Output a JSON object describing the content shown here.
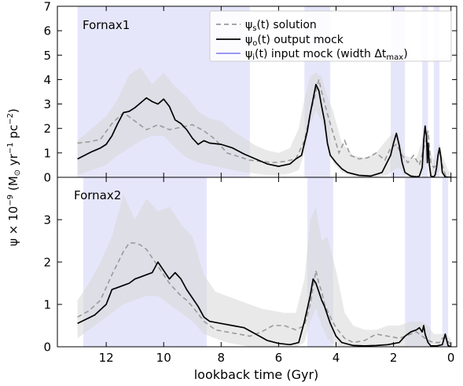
{
  "figure": {
    "ylabel_main": "ψ × 10",
    "ylabel_exp": "−9",
    "ylabel_unit_open": " (M",
    "ylabel_sun": "⊙",
    "ylabel_unit_mid": " yr",
    "ylabel_unit_exp1": "−1",
    "ylabel_unit_pc": " pc",
    "ylabel_unit_exp2": "−2",
    "ylabel_unit_close": ")",
    "xlabel": "lookback time (Gyr)",
    "xlim": [
      13.7,
      -0.2
    ],
    "x_ticks": [
      12,
      10,
      8,
      6,
      4,
      2,
      0
    ],
    "colors": {
      "band": "#e6e6fb",
      "uncertainty": "#d7d7d7",
      "output": "#000000",
      "solution": "#9a9a9a",
      "input_legend": "#8c8cf0"
    }
  },
  "legend": {
    "solution_psi": "ψ",
    "solution_sub": "s",
    "solution_text": "(t) solution",
    "output_psi": "ψ",
    "output_sub": "o",
    "output_text": "(t) output mock",
    "input_psi": "ψ",
    "input_sub": "i",
    "input_text": "(t) input mock (width Δt",
    "input_max": "max",
    "input_close": ")"
  },
  "chart_data": [
    {
      "type": "line",
      "title": "Fornax1",
      "ylim": [
        0,
        7
      ],
      "y_ticks": [
        0,
        1,
        2,
        3,
        4,
        5,
        6,
        7
      ],
      "input_bands": [
        [
          13.0,
          7.0
        ],
        [
          5.1,
          4.2
        ],
        [
          2.1,
          1.6
        ],
        [
          1.0,
          0.8
        ],
        [
          0.6,
          0.4
        ]
      ],
      "series": [
        {
          "name": "output mock",
          "x": [
            13.0,
            12.5,
            12.2,
            12.0,
            11.8,
            11.6,
            11.4,
            11.2,
            11.0,
            10.8,
            10.6,
            10.4,
            10.2,
            10.0,
            9.8,
            9.6,
            9.4,
            9.2,
            9.0,
            8.8,
            8.6,
            8.4,
            8.0,
            7.6,
            7.2,
            6.8,
            6.4,
            6.0,
            5.6,
            5.4,
            5.2,
            5.0,
            4.9,
            4.8,
            4.7,
            4.6,
            4.5,
            4.4,
            4.3,
            4.2,
            4.0,
            3.8,
            3.6,
            3.2,
            2.8,
            2.4,
            2.1,
            2.0,
            1.9,
            1.8,
            1.7,
            1.6,
            1.4,
            1.2,
            1.1,
            1.0,
            0.95,
            0.9,
            0.88,
            0.85,
            0.82,
            0.8,
            0.75,
            0.7,
            0.6,
            0.55,
            0.5,
            0.45,
            0.4,
            0.35,
            0.3,
            0.2,
            0.1,
            0.0
          ],
          "values": [
            0.75,
            1.05,
            1.2,
            1.35,
            1.7,
            2.2,
            2.65,
            2.7,
            2.85,
            3.05,
            3.25,
            3.1,
            3.0,
            3.2,
            2.9,
            2.35,
            2.2,
            1.95,
            1.6,
            1.35,
            1.5,
            1.4,
            1.35,
            1.2,
            0.95,
            0.75,
            0.55,
            0.45,
            0.55,
            0.75,
            0.9,
            1.9,
            2.6,
            3.2,
            3.8,
            3.55,
            2.9,
            2.3,
            1.4,
            0.9,
            0.6,
            0.35,
            0.2,
            0.08,
            0.05,
            0.2,
            0.9,
            1.4,
            1.8,
            1.3,
            0.6,
            0.2,
            0.05,
            0.02,
            0.05,
            0.4,
            1.5,
            2.1,
            1.9,
            1.7,
            0.6,
            1.4,
            0.5,
            0.05,
            0.02,
            0.1,
            0.4,
            0.9,
            1.2,
            0.8,
            0.2,
            0.02,
            0.0,
            0.0
          ]
        },
        {
          "name": "solution",
          "x": [
            13.0,
            12.6,
            12.2,
            11.8,
            11.4,
            11.0,
            10.6,
            10.2,
            9.8,
            9.4,
            9.0,
            8.6,
            8.2,
            7.8,
            7.4,
            7.0,
            6.6,
            6.2,
            5.8,
            5.4,
            5.1,
            4.9,
            4.7,
            4.6,
            4.5,
            4.3,
            4.1,
            3.9,
            3.7,
            3.5,
            3.2,
            2.9,
            2.6,
            2.3,
            2.1,
            1.9,
            1.7,
            1.5,
            1.3,
            1.1,
            0.9,
            0.8,
            0.7,
            0.6,
            0.5,
            0.4,
            0.3,
            0.2,
            0.1,
            0.0
          ],
          "values": [
            1.4,
            1.45,
            1.55,
            2.2,
            2.65,
            2.3,
            1.95,
            2.15,
            1.95,
            2.05,
            2.15,
            1.9,
            1.55,
            1.0,
            0.85,
            0.7,
            0.65,
            0.6,
            0.65,
            0.75,
            1.5,
            2.6,
            3.5,
            4.0,
            3.5,
            2.6,
            1.8,
            1.0,
            1.5,
            0.9,
            0.75,
            0.8,
            1.0,
            0.7,
            1.2,
            1.35,
            0.9,
            0.6,
            0.9,
            0.5,
            1.4,
            1.9,
            0.6,
            0.4,
            0.5,
            1.2,
            0.5,
            0.1,
            0.02,
            0.0
          ]
        },
        {
          "name": "uncertainty",
          "x": [
            13.0,
            12.5,
            12.0,
            11.6,
            11.2,
            10.8,
            10.4,
            10.0,
            9.6,
            9.2,
            8.8,
            8.4,
            8.0,
            7.6,
            7.2,
            6.8,
            6.4,
            6.0,
            5.6,
            5.3,
            5.1,
            4.9,
            4.7,
            4.5,
            4.3,
            4.1,
            3.8,
            3.4,
            3.0,
            2.6,
            2.2,
            2.0,
            1.8,
            1.6,
            1.4,
            1.2,
            1.0,
            0.9,
            0.8,
            0.7,
            0.6,
            0.5,
            0.4,
            0.3,
            0.1,
            0.0
          ],
          "upper": [
            1.5,
            2.0,
            2.5,
            3.2,
            4.2,
            4.5,
            3.8,
            4.3,
            3.7,
            3.3,
            2.7,
            2.4,
            2.3,
            1.9,
            1.6,
            1.3,
            1.1,
            1.0,
            1.2,
            2.0,
            3.2,
            4.1,
            4.3,
            4.1,
            3.3,
            2.7,
            1.4,
            0.9,
            0.8,
            1.0,
            1.6,
            1.8,
            1.5,
            0.9,
            0.8,
            0.8,
            1.5,
            2.2,
            1.9,
            1.0,
            0.7,
            1.1,
            1.4,
            0.9,
            0.3,
            0.2
          ],
          "lower": [
            0.1,
            0.3,
            0.5,
            0.9,
            1.2,
            1.5,
            1.7,
            1.7,
            1.2,
            0.8,
            0.6,
            0.5,
            0.4,
            0.3,
            0.2,
            0.15,
            0.1,
            0.1,
            0.15,
            0.3,
            1.0,
            2.2,
            2.7,
            2.3,
            1.5,
            0.6,
            0.2,
            0.05,
            0.0,
            0.0,
            0.1,
            0.3,
            0.4,
            0.05,
            0.0,
            0.0,
            0.1,
            0.6,
            0.5,
            0.05,
            0.0,
            0.1,
            0.3,
            0.1,
            0.0,
            0.0
          ]
        }
      ]
    },
    {
      "type": "line",
      "title": "Fornax2",
      "ylim": [
        0,
        4
      ],
      "y_ticks": [
        0,
        1,
        2,
        3
      ],
      "input_bands": [
        [
          12.8,
          8.5
        ],
        [
          5.0,
          4.1
        ],
        [
          1.6,
          0.7
        ],
        [
          0.3,
          0.1
        ]
      ],
      "series": [
        {
          "name": "output mock",
          "x": [
            13.0,
            12.4,
            12.0,
            11.8,
            11.6,
            11.4,
            11.2,
            11.0,
            10.8,
            10.6,
            10.4,
            10.2,
            10.0,
            9.8,
            9.6,
            9.4,
            9.2,
            9.0,
            8.8,
            8.6,
            8.4,
            8.0,
            7.6,
            7.2,
            6.8,
            6.4,
            6.0,
            5.6,
            5.3,
            5.1,
            4.9,
            4.8,
            4.7,
            4.6,
            4.5,
            4.4,
            4.2,
            4.0,
            3.8,
            3.4,
            3.0,
            2.6,
            2.2,
            1.8,
            1.6,
            1.4,
            1.2,
            1.1,
            1.0,
            0.95,
            0.9,
            0.85,
            0.8,
            0.7,
            0.5,
            0.3,
            0.2,
            0.1,
            0.0
          ],
          "values": [
            0.55,
            0.75,
            1.0,
            1.35,
            1.4,
            1.45,
            1.5,
            1.6,
            1.65,
            1.7,
            1.75,
            2.0,
            1.8,
            1.6,
            1.75,
            1.6,
            1.35,
            1.15,
            0.95,
            0.7,
            0.6,
            0.55,
            0.5,
            0.45,
            0.3,
            0.15,
            0.08,
            0.05,
            0.1,
            0.6,
            1.2,
            1.6,
            1.5,
            1.3,
            1.1,
            0.95,
            0.55,
            0.25,
            0.1,
            0.03,
            0.02,
            0.03,
            0.05,
            0.1,
            0.25,
            0.35,
            0.4,
            0.45,
            0.35,
            0.5,
            0.3,
            0.2,
            0.1,
            0.02,
            0.02,
            0.05,
            0.3,
            0.03,
            0.0
          ]
        },
        {
          "name": "solution",
          "x": [
            13.0,
            12.6,
            12.2,
            11.8,
            11.4,
            11.2,
            11.0,
            10.8,
            10.6,
            10.4,
            10.2,
            10.0,
            9.8,
            9.6,
            9.4,
            9.2,
            9.0,
            8.6,
            8.2,
            7.8,
            7.4,
            7.0,
            6.6,
            6.2,
            5.8,
            5.4,
            5.1,
            4.9,
            4.7,
            4.6,
            4.5,
            4.4,
            4.2,
            4.0,
            3.7,
            3.4,
            3.0,
            2.6,
            2.2,
            1.8,
            1.4,
            1.2,
            1.0,
            0.9,
            0.8,
            0.6,
            0.4,
            0.3,
            0.2,
            0.0
          ],
          "values": [
            0.7,
            0.85,
            1.1,
            1.7,
            2.25,
            2.45,
            2.45,
            2.4,
            2.3,
            2.1,
            1.9,
            1.7,
            1.5,
            1.35,
            1.2,
            1.1,
            0.95,
            0.6,
            0.4,
            0.35,
            0.3,
            0.25,
            0.35,
            0.5,
            0.5,
            0.4,
            0.5,
            1.0,
            1.8,
            1.5,
            1.3,
            1.0,
            0.7,
            0.45,
            0.2,
            0.1,
            0.15,
            0.3,
            0.25,
            0.2,
            0.3,
            0.35,
            0.25,
            0.2,
            0.15,
            0.1,
            0.1,
            0.2,
            0.2,
            0.05
          ]
        },
        {
          "name": "uncertainty",
          "x": [
            13.0,
            12.6,
            12.2,
            11.8,
            11.4,
            11.0,
            10.6,
            10.2,
            9.8,
            9.4,
            9.0,
            8.6,
            8.2,
            7.8,
            7.4,
            7.0,
            6.6,
            6.2,
            5.8,
            5.4,
            5.1,
            4.9,
            4.7,
            4.5,
            4.3,
            4.0,
            3.7,
            3.4,
            3.0,
            2.6,
            2.2,
            1.8,
            1.4,
            1.0,
            0.8,
            0.6,
            0.4,
            0.2,
            0.0
          ],
          "upper": [
            1.1,
            1.5,
            2.0,
            2.6,
            3.6,
            3.0,
            3.5,
            3.2,
            3.3,
            2.9,
            2.6,
            1.7,
            1.3,
            1.2,
            1.1,
            1.0,
            0.9,
            0.85,
            0.8,
            0.8,
            1.6,
            3.0,
            3.3,
            2.5,
            2.6,
            1.8,
            0.8,
            0.5,
            0.4,
            0.4,
            0.5,
            0.5,
            0.6,
            0.6,
            0.5,
            0.3,
            0.3,
            0.3,
            0.2
          ],
          "lower": [
            0.2,
            0.4,
            0.6,
            0.8,
            1.0,
            1.1,
            1.2,
            1.2,
            1.0,
            0.8,
            0.6,
            0.3,
            0.2,
            0.1,
            0.05,
            0.0,
            0.0,
            0.0,
            0.0,
            0.0,
            0.1,
            0.6,
            0.9,
            0.5,
            0.2,
            0.0,
            0.0,
            0.0,
            0.0,
            0.0,
            0.0,
            0.0,
            0.0,
            0.0,
            0.0,
            0.0,
            0.0,
            0.0,
            0.0
          ]
        }
      ]
    }
  ]
}
